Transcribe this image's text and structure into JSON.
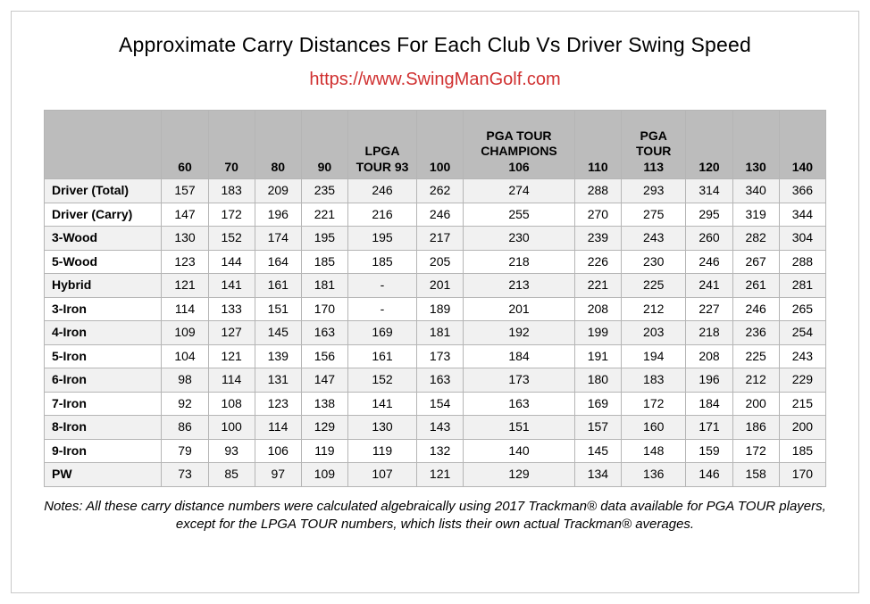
{
  "title": "Approximate Carry Distances For Each Club Vs Driver Swing Speed",
  "link_text": "https://www.SwingManGolf.com",
  "link_color": "#d03030",
  "border_color": "#c9c9c9",
  "header_bg": "#bcbcbc",
  "row_alt_bg": "#f1f1f1",
  "row_bg": "#ffffff",
  "cell_border": "#b5b5b5",
  "headers": [
    "",
    "60",
    "70",
    "80",
    "90",
    "LPGA TOUR 93",
    "100",
    "PGA TOUR CHAMPIONS 106",
    "110",
    "PGA TOUR 113",
    "120",
    "130",
    "140"
  ],
  "rows": [
    {
      "club": "Driver (Total)",
      "v": [
        "157",
        "183",
        "209",
        "235",
        "246",
        "262",
        "274",
        "288",
        "293",
        "314",
        "340",
        "366"
      ]
    },
    {
      "club": "Driver (Carry)",
      "v": [
        "147",
        "172",
        "196",
        "221",
        "216",
        "246",
        "255",
        "270",
        "275",
        "295",
        "319",
        "344"
      ]
    },
    {
      "club": "3-Wood",
      "v": [
        "130",
        "152",
        "174",
        "195",
        "195",
        "217",
        "230",
        "239",
        "243",
        "260",
        "282",
        "304"
      ]
    },
    {
      "club": "5-Wood",
      "v": [
        "123",
        "144",
        "164",
        "185",
        "185",
        "205",
        "218",
        "226",
        "230",
        "246",
        "267",
        "288"
      ]
    },
    {
      "club": "Hybrid",
      "v": [
        "121",
        "141",
        "161",
        "181",
        "-",
        "201",
        "213",
        "221",
        "225",
        "241",
        "261",
        "281"
      ]
    },
    {
      "club": "3-Iron",
      "v": [
        "114",
        "133",
        "151",
        "170",
        "-",
        "189",
        "201",
        "208",
        "212",
        "227",
        "246",
        "265"
      ]
    },
    {
      "club": "4-Iron",
      "v": [
        "109",
        "127",
        "145",
        "163",
        "169",
        "181",
        "192",
        "199",
        "203",
        "218",
        "236",
        "254"
      ]
    },
    {
      "club": "5-Iron",
      "v": [
        "104",
        "121",
        "139",
        "156",
        "161",
        "173",
        "184",
        "191",
        "194",
        "208",
        "225",
        "243"
      ]
    },
    {
      "club": "6-Iron",
      "v": [
        "98",
        "114",
        "131",
        "147",
        "152",
        "163",
        "173",
        "180",
        "183",
        "196",
        "212",
        "229"
      ]
    },
    {
      "club": "7-Iron",
      "v": [
        "92",
        "108",
        "123",
        "138",
        "141",
        "154",
        "163",
        "169",
        "172",
        "184",
        "200",
        "215"
      ]
    },
    {
      "club": "8-Iron",
      "v": [
        "86",
        "100",
        "114",
        "129",
        "130",
        "143",
        "151",
        "157",
        "160",
        "171",
        "186",
        "200"
      ]
    },
    {
      "club": "9-Iron",
      "v": [
        "79",
        "93",
        "106",
        "119",
        "119",
        "132",
        "140",
        "145",
        "148",
        "159",
        "172",
        "185"
      ]
    },
    {
      "club": "PW",
      "v": [
        "73",
        "85",
        "97",
        "109",
        "107",
        "121",
        "129",
        "134",
        "136",
        "146",
        "158",
        "170"
      ]
    }
  ],
  "notes": "Notes: All these carry distance numbers were calculated algebraically using 2017 Trackman® data available for PGA TOUR players, except for the LPGA TOUR numbers, which lists their own actual Trackman® averages."
}
